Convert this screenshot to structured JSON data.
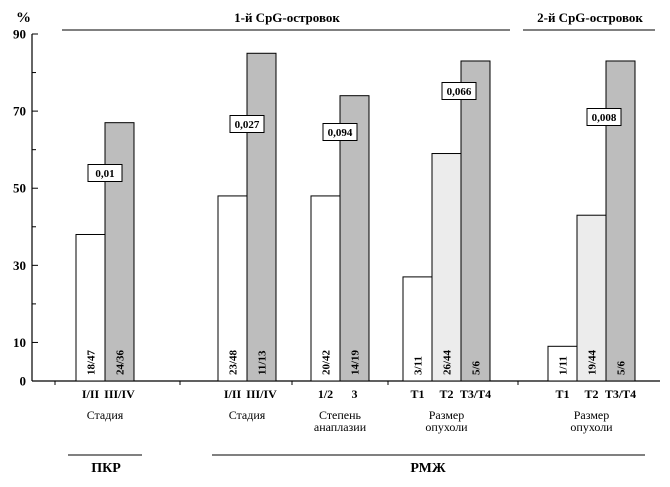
{
  "chart_data": {
    "type": "bar",
    "ylabel": "%",
    "ylim": [
      0,
      90
    ],
    "yticks": [
      0,
      10,
      30,
      50,
      70,
      90
    ],
    "colors": {
      "white": "#ffffff",
      "light": "#ececec",
      "gray": "#bdbdbd"
    },
    "section_titles": [
      "1-й CpG-островок",
      "2-й CpG-островок"
    ],
    "disease_labels": [
      "ПКР",
      "РМЖ"
    ],
    "groups": [
      {
        "label_lines": [
          "Стадия"
        ],
        "pvalue": "0,01",
        "bars": [
          {
            "category": "I/II",
            "value": 38,
            "fraction": "18/47",
            "color": "white"
          },
          {
            "category": "III/IV",
            "value": 67,
            "fraction": "24/36",
            "color": "gray"
          }
        ]
      },
      {
        "label_lines": [
          "Стадия"
        ],
        "pvalue": "0,027",
        "bars": [
          {
            "category": "I/II",
            "value": 48,
            "fraction": "23/48",
            "color": "white"
          },
          {
            "category": "III/IV",
            "value": 85,
            "fraction": "11/13",
            "color": "gray"
          }
        ]
      },
      {
        "label_lines": [
          "Степень",
          "анаплазии"
        ],
        "pvalue": "0,094",
        "bars": [
          {
            "category": "1/2",
            "value": 48,
            "fraction": "20/42",
            "color": "white"
          },
          {
            "category": "3",
            "value": 74,
            "fraction": "14/19",
            "color": "gray"
          }
        ]
      },
      {
        "label_lines": [
          "Размер",
          "опухоли"
        ],
        "pvalue": "0,066",
        "bars": [
          {
            "category": "T1",
            "value": 27,
            "fraction": "3/11",
            "color": "white"
          },
          {
            "category": "T2",
            "value": 59,
            "fraction": "26/44",
            "color": "light"
          },
          {
            "category": "T3/T4",
            "value": 83,
            "fraction": "5/6",
            "color": "gray"
          }
        ]
      },
      {
        "label_lines": [
          "Размер",
          "опухоли"
        ],
        "pvalue": "0,008",
        "bars": [
          {
            "category": "T1",
            "value": 9,
            "fraction": "1/11",
            "color": "white"
          },
          {
            "category": "T2",
            "value": 43,
            "fraction": "19/44",
            "color": "light"
          },
          {
            "category": "T3/T4",
            "value": 83,
            "fraction": "5/6",
            "color": "gray"
          }
        ]
      }
    ]
  }
}
